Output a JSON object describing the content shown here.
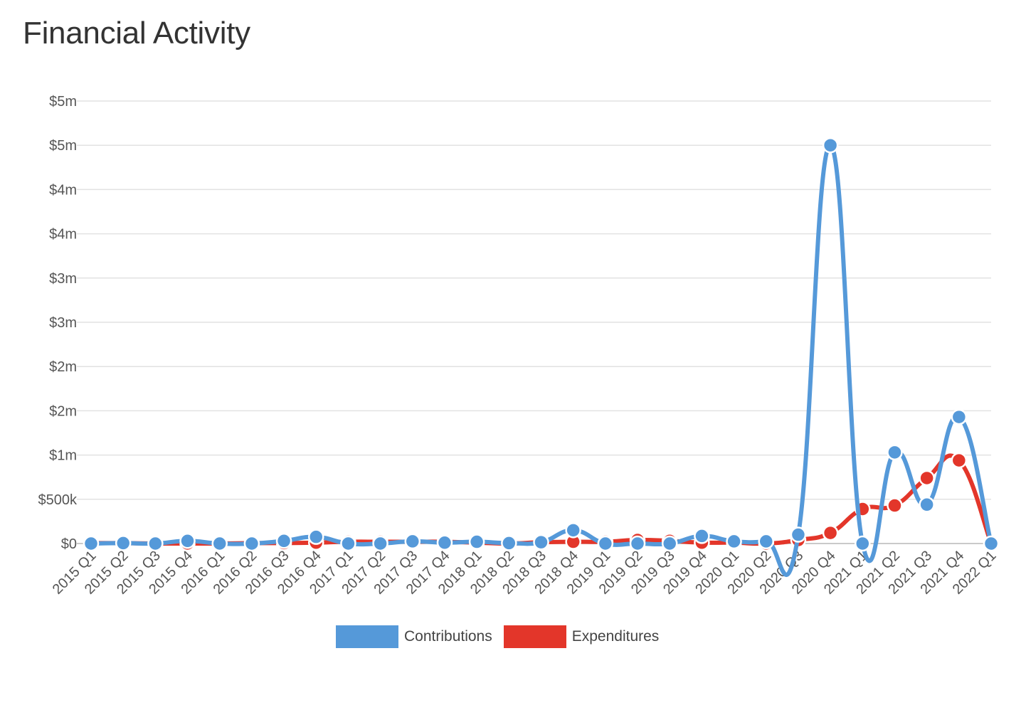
{
  "title": "Financial Activity",
  "chart_data": {
    "type": "line",
    "categories": [
      "2015 Q1",
      "2015 Q2",
      "2015 Q3",
      "2015 Q4",
      "2016 Q1",
      "2016 Q2",
      "2016 Q3",
      "2016 Q4",
      "2017 Q1",
      "2017 Q2",
      "2017 Q3",
      "2017 Q4",
      "2018 Q1",
      "2018 Q2",
      "2018 Q3",
      "2018 Q4",
      "2019 Q1",
      "2019 Q2",
      "2019 Q3",
      "2019 Q4",
      "2020 Q1",
      "2020 Q2",
      "2020 Q3",
      "2020 Q4",
      "2021 Q1",
      "2021 Q2",
      "2021 Q3",
      "2021 Q4",
      "2022 Q1"
    ],
    "series": [
      {
        "name": "Contributions",
        "color": "#5599d9",
        "values": [
          0,
          5000,
          0,
          30000,
          0,
          0,
          30000,
          75000,
          0,
          0,
          25000,
          10000,
          20000,
          5000,
          15000,
          150000,
          0,
          0,
          0,
          85000,
          25000,
          25000,
          100000,
          4500000,
          0,
          1030000,
          440000,
          1430000,
          0
        ]
      },
      {
        "name": "Expenditures",
        "color": "#e3362a",
        "values": [
          5000,
          5000,
          0,
          0,
          0,
          5000,
          5000,
          10000,
          20000,
          20000,
          20000,
          20000,
          10000,
          0,
          15000,
          20000,
          20000,
          40000,
          30000,
          10000,
          10000,
          0,
          40000,
          120000,
          390000,
          430000,
          740000,
          940000,
          0
        ]
      }
    ],
    "y_ticks": [
      {
        "value": 0,
        "label": "$0"
      },
      {
        "value": 500000,
        "label": "$500k"
      },
      {
        "value": 1000000,
        "label": "$1m"
      },
      {
        "value": 1500000,
        "label": "$2m"
      },
      {
        "value": 2000000,
        "label": "$2m"
      },
      {
        "value": 2500000,
        "label": "$3m"
      },
      {
        "value": 3000000,
        "label": "$3m"
      },
      {
        "value": 3500000,
        "label": "$4m"
      },
      {
        "value": 4000000,
        "label": "$4m"
      },
      {
        "value": 4500000,
        "label": "$5m"
      },
      {
        "value": 5000000,
        "label": "$5m"
      }
    ],
    "ylim": [
      0,
      5000000
    ],
    "grid": true,
    "legend_position": "bottom-center"
  }
}
